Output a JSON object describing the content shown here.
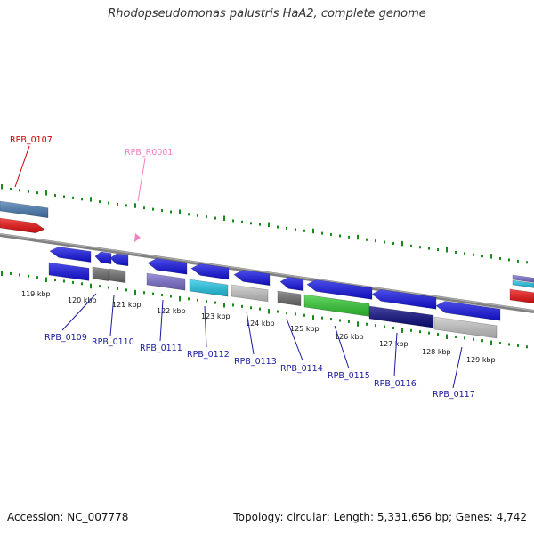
{
  "title": "Rhodopseudomonas palustris HaA2, complete genome",
  "footer": {
    "accession": "Accession: NC_007778",
    "summary": "Topology: circular; Length: 5,331,656 bp; Genes: 4,742"
  },
  "colors": {
    "ruler": "#1a8a1a",
    "backbone": "#808080",
    "blue": "#1414e6",
    "red": "#ee1111",
    "steel": "#4a7db5",
    "gray": "#6e6e6e",
    "lavender": "#7b6fd0",
    "cyan": "#22c8e8",
    "silver": "#c8c8c8",
    "green": "#33cc33",
    "navy": "#0a0a80",
    "label_blue": "#1a1aa0",
    "label_red": "#cc0000",
    "label_pink": "#f080c0"
  },
  "ticks": [
    "119 kbp",
    "120 kbp",
    "121 kbp",
    "122 kbp",
    "123 kbp",
    "124 kbp",
    "125 kbp",
    "126 kbp",
    "127 kbp",
    "128 kbp",
    "129 kbp"
  ],
  "labels": [
    {
      "name": "RPB_0107",
      "color": "red"
    },
    {
      "name": "RPB_R0001",
      "color": "pink"
    },
    {
      "name": "RPB_0109",
      "color": "blue"
    },
    {
      "name": "RPB_0110",
      "color": "blue"
    },
    {
      "name": "RPB_0111",
      "color": "blue"
    },
    {
      "name": "RPB_0112",
      "color": "blue"
    },
    {
      "name": "RPB_0113",
      "color": "blue"
    },
    {
      "name": "RPB_0114",
      "color": "blue"
    },
    {
      "name": "RPB_0115",
      "color": "blue"
    },
    {
      "name": "RPB_0116",
      "color": "blue"
    },
    {
      "name": "RPB_0117",
      "color": "blue"
    }
  ]
}
